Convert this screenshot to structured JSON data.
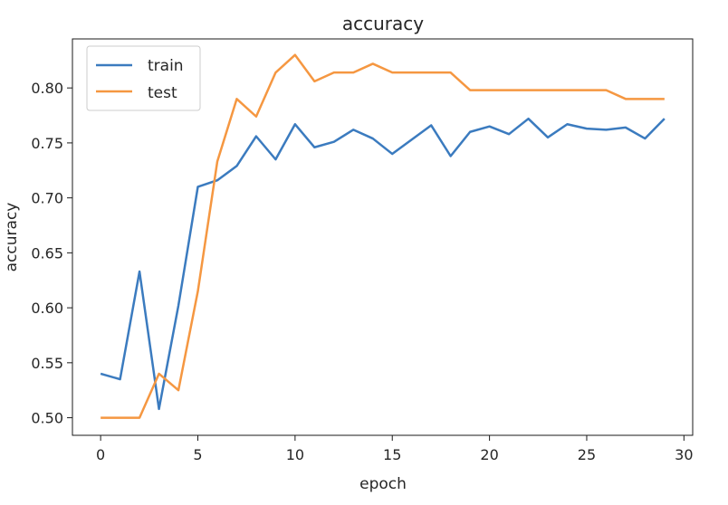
{
  "chart_data": {
    "type": "line",
    "title": "accuracy",
    "xlabel": "epoch",
    "ylabel": "accuracy",
    "xlim": [
      -1.45,
      30.45
    ],
    "ylim": [
      0.484,
      0.8446
    ],
    "xticks": [
      0,
      5,
      10,
      15,
      20,
      25,
      30
    ],
    "yticks": [
      0.5,
      0.55,
      0.6,
      0.65,
      0.7,
      0.75,
      0.8
    ],
    "ytick_labels": [
      "0.50",
      "0.55",
      "0.60",
      "0.65",
      "0.70",
      "0.75",
      "0.80"
    ],
    "legend": "upper-left",
    "grid": false,
    "x": [
      0,
      1,
      2,
      3,
      4,
      5,
      6,
      7,
      8,
      9,
      10,
      11,
      12,
      13,
      14,
      15,
      16,
      17,
      18,
      19,
      20,
      21,
      22,
      23,
      24,
      25,
      26,
      27,
      28,
      29
    ],
    "series": [
      {
        "name": "train",
        "color": "#3b7bbf",
        "values": [
          0.54,
          0.535,
          0.633,
          0.508,
          0.602,
          0.71,
          0.716,
          0.729,
          0.756,
          0.735,
          0.767,
          0.746,
          0.751,
          0.762,
          0.754,
          0.74,
          0.753,
          0.766,
          0.738,
          0.76,
          0.765,
          0.758,
          0.772,
          0.755,
          0.767,
          0.763,
          0.762,
          0.764,
          0.754,
          0.772
        ]
      },
      {
        "name": "test",
        "color": "#f59741",
        "values": [
          0.5,
          0.5,
          0.5,
          0.54,
          0.525,
          0.615,
          0.733,
          0.79,
          0.774,
          0.814,
          0.83,
          0.806,
          0.814,
          0.814,
          0.822,
          0.814,
          0.814,
          0.814,
          0.814,
          0.798,
          0.798,
          0.798,
          0.798,
          0.798,
          0.798,
          0.798,
          0.798,
          0.79,
          0.79,
          0.79
        ]
      }
    ]
  }
}
